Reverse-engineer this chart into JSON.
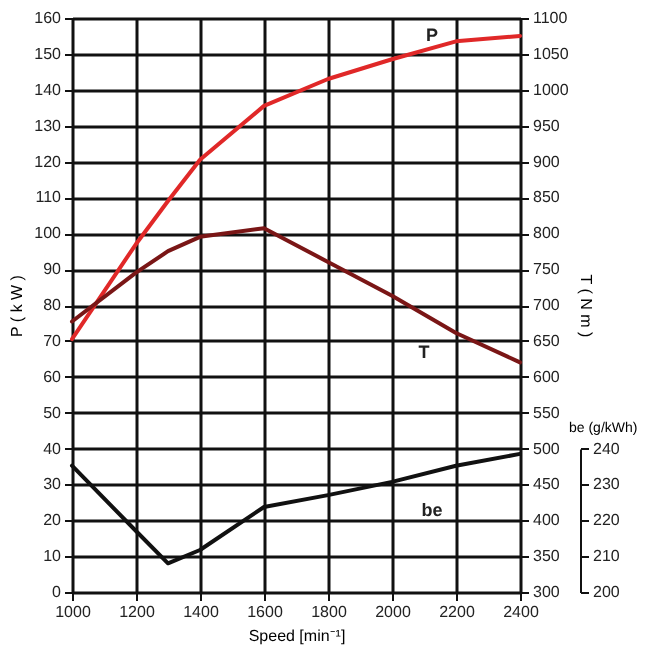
{
  "chart_data": {
    "type": "line",
    "xlabel": "Speed [min⁻¹]",
    "ylabel": "P ( k W )",
    "y2label": "T ( N m )",
    "y3label": "be (g/kWh)",
    "x": [
      1000,
      1200,
      1300,
      1400,
      1600,
      1800,
      2000,
      2200,
      2400
    ],
    "xlim": [
      1000,
      2400
    ],
    "xticks": [
      1000,
      1200,
      1400,
      1600,
      1800,
      2000,
      2200,
      2400
    ],
    "ylim": [
      0,
      160
    ],
    "yticks": [
      0,
      10,
      20,
      30,
      40,
      50,
      60,
      70,
      80,
      90,
      100,
      110,
      120,
      130,
      140,
      150,
      160
    ],
    "y2lim": [
      300,
      1100
    ],
    "y2ticks": [
      300,
      350,
      400,
      450,
      500,
      550,
      600,
      650,
      700,
      750,
      800,
      850,
      900,
      950,
      1000,
      1050,
      1100
    ],
    "y3lim": [
      200,
      240
    ],
    "y3ticks": [
      200,
      210,
      220,
      230,
      240
    ],
    "grid": true,
    "series": [
      {
        "name": "P",
        "color": "#e02828",
        "values": [
          70.5,
          97,
          109,
          120.5,
          135.5,
          143,
          148.5,
          153.5,
          155
        ]
      },
      {
        "name": "T",
        "color": "#7a1616",
        "axis": "y2",
        "values": [
          677,
          745,
          775,
          795,
          807,
          760,
          713,
          661,
          620
        ]
      },
      {
        "name": "be",
        "color": "#111111",
        "axis": "y3",
        "values": [
          235.2,
          217,
          208,
          211.7,
          223.7,
          227,
          230.7,
          235.2,
          238.5
        ]
      }
    ]
  }
}
